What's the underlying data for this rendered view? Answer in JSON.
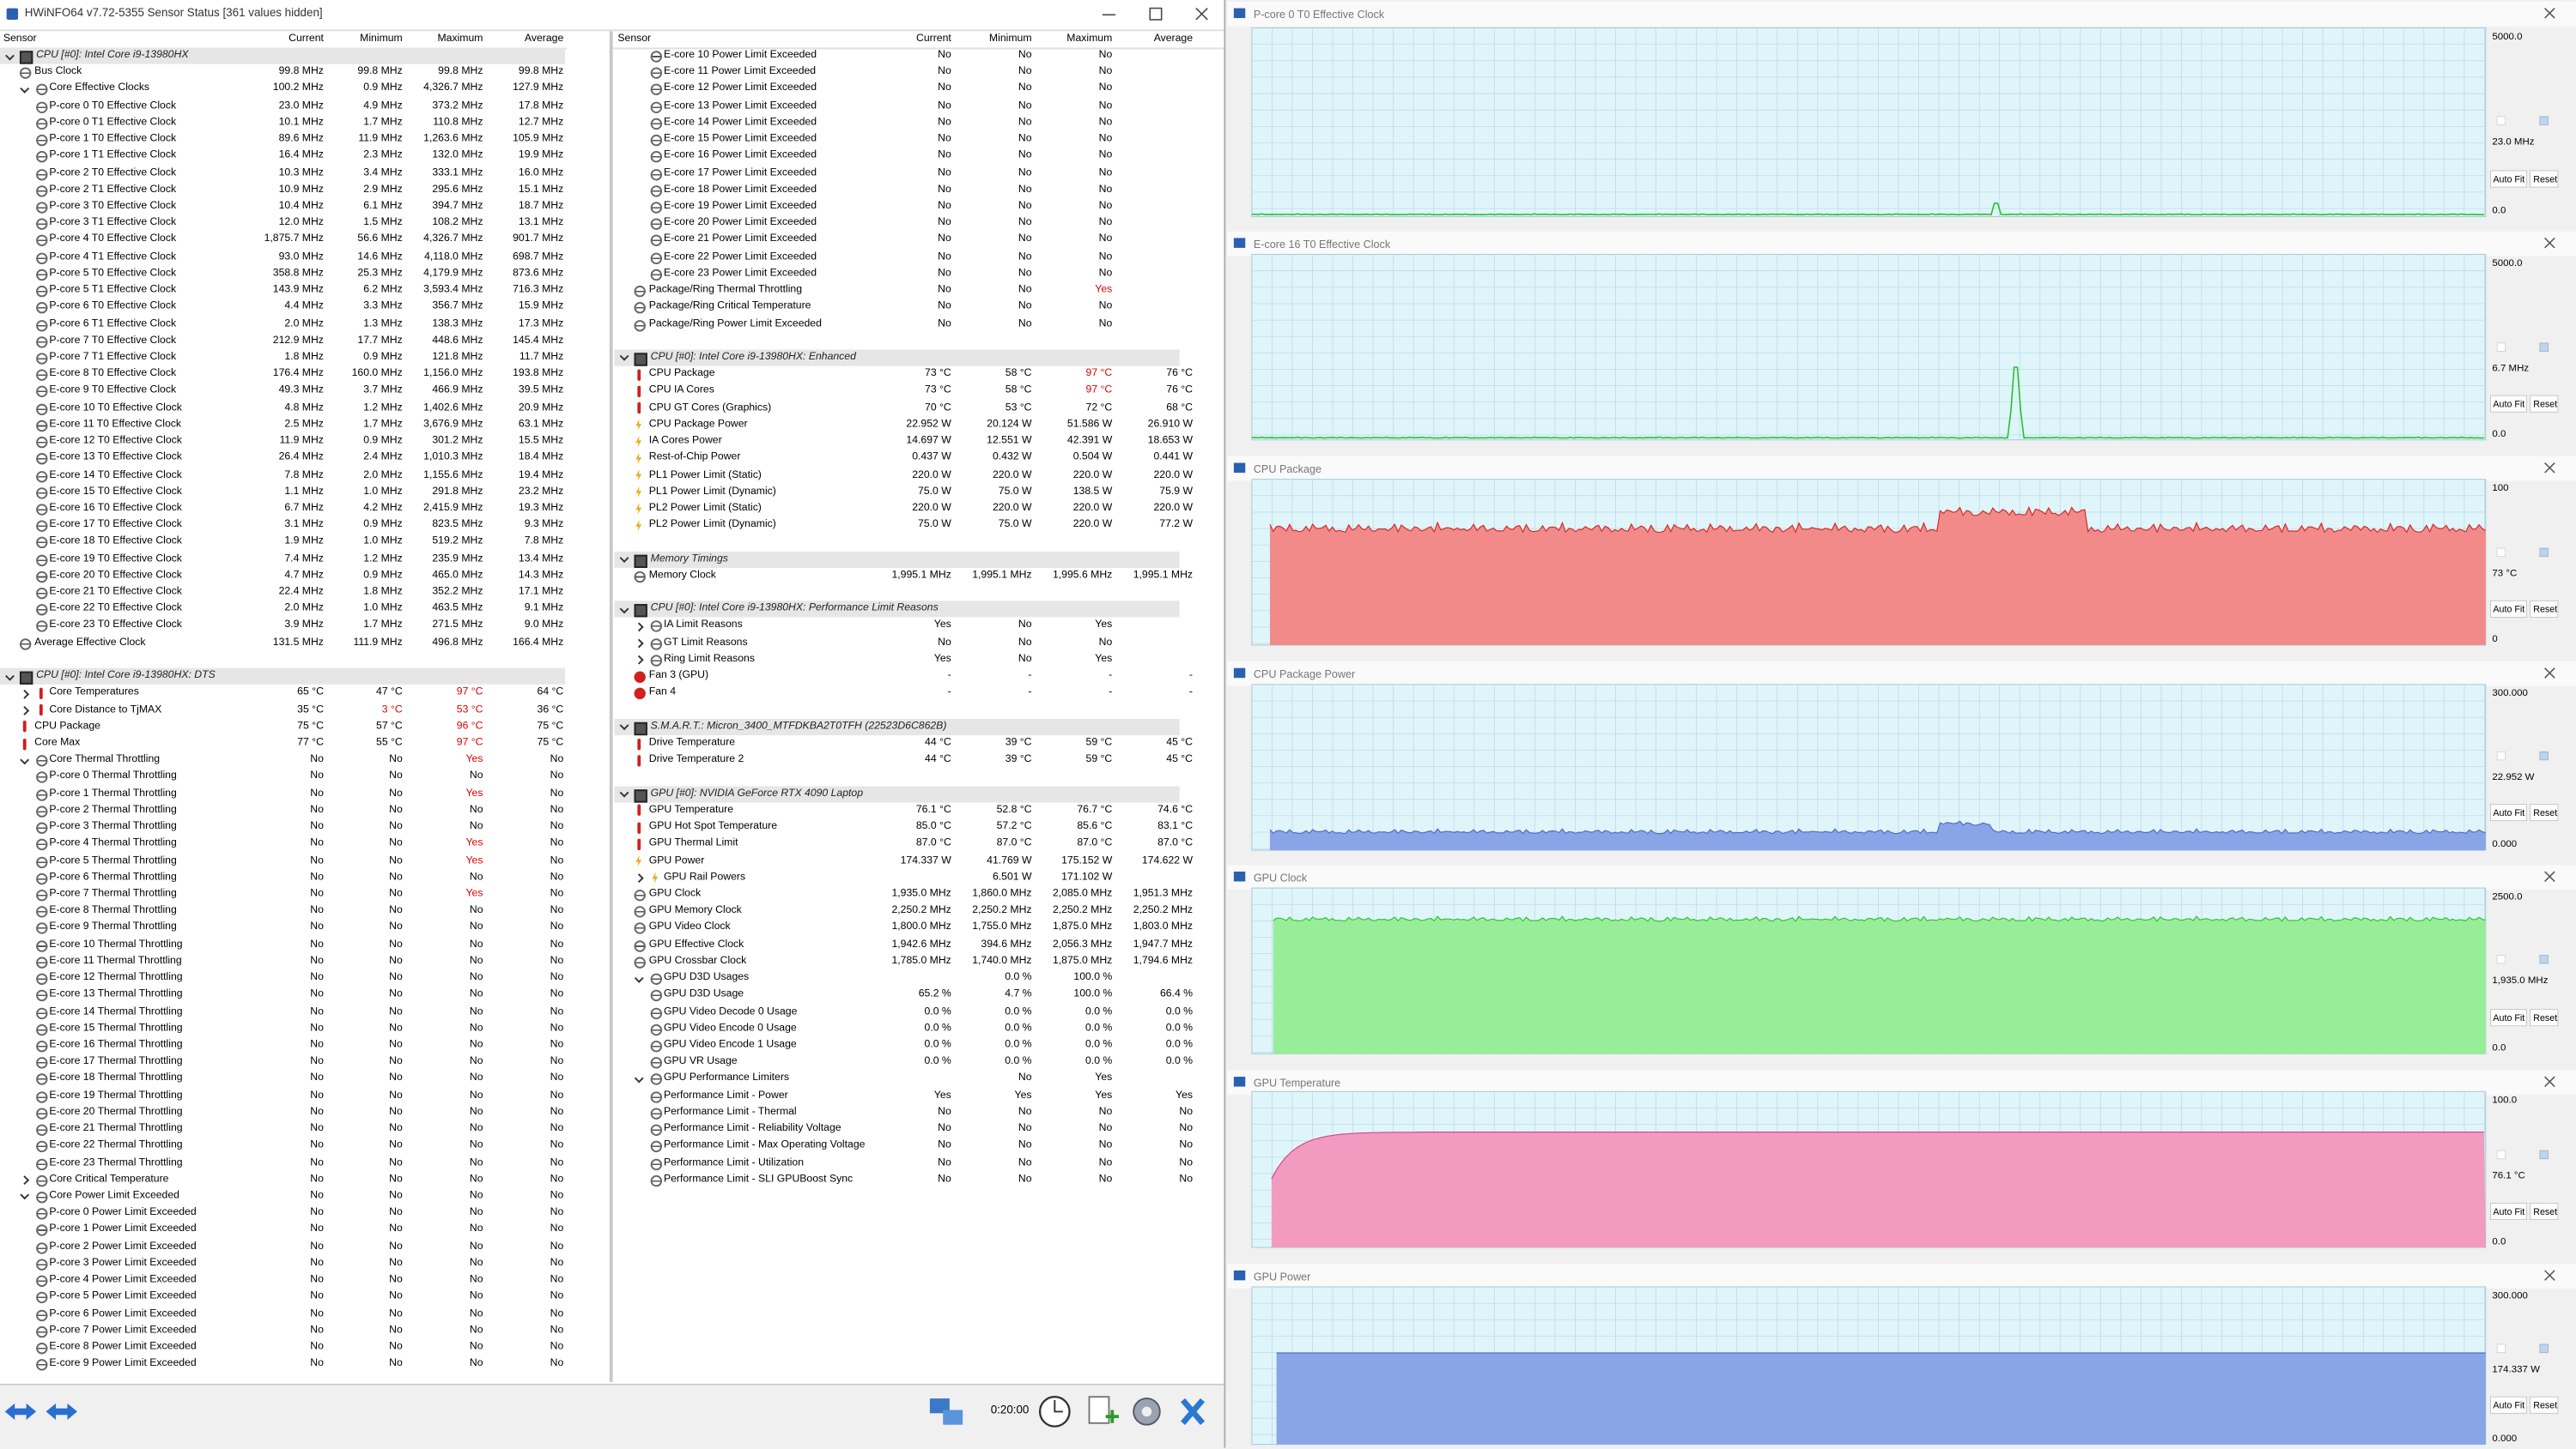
{
  "window_title": "HWiNFO64 v7.72-5355 Sensor Status [361 values hidden]",
  "left_pane": {
    "columns": [
      "Sensor",
      "Current",
      "Minimum",
      "Maximum",
      "Average"
    ],
    "rows": [
      [
        "CPU [#0]: Intel Core i9-13980HX"
      ],
      [
        "Bus Clock",
        "99.8 MHz",
        "99.8 MHz",
        "99.8 MHz",
        "99.8 MHz"
      ],
      [
        "Core Effective Clocks",
        "100.2 MHz",
        "0.9 MHz",
        "4,326.7 MHz",
        "127.9 MHz"
      ],
      [
        "P-core 0 T0 Effective Clock",
        "23.0 MHz",
        "4.9 MHz",
        "373.2 MHz",
        "17.8 MHz"
      ],
      [
        "P-core 0 T1 Effective Clock",
        "10.1 MHz",
        "1.7 MHz",
        "110.8 MHz",
        "12.7 MHz"
      ],
      [
        "P-core 1 T0 Effective Clock",
        "89.6 MHz",
        "11.9 MHz",
        "1,263.6 MHz",
        "105.9 MHz"
      ],
      [
        "P-core 1 T1 Effective Clock",
        "16.4 MHz",
        "2.3 MHz",
        "132.0 MHz",
        "19.9 MHz"
      ],
      [
        "P-core 2 T0 Effective Clock",
        "10.3 MHz",
        "3.4 MHz",
        "333.1 MHz",
        "16.0 MHz"
      ],
      [
        "P-core 2 T1 Effective Clock",
        "10.9 MHz",
        "2.9 MHz",
        "295.6 MHz",
        "15.1 MHz"
      ],
      [
        "P-core 3 T0 Effective Clock",
        "10.4 MHz",
        "6.1 MHz",
        "394.7 MHz",
        "18.7 MHz"
      ],
      [
        "P-core 3 T1 Effective Clock",
        "12.0 MHz",
        "1.5 MHz",
        "108.2 MHz",
        "13.1 MHz"
      ],
      [
        "P-core 4 T0 Effective Clock",
        "1,875.7 MHz",
        "56.6 MHz",
        "4,326.7 MHz",
        "901.7 MHz"
      ],
      [
        "P-core 4 T1 Effective Clock",
        "93.0 MHz",
        "14.6 MHz",
        "4,118.0 MHz",
        "698.7 MHz"
      ],
      [
        "P-core 5 T0 Effective Clock",
        "358.8 MHz",
        "25.3 MHz",
        "4,179.9 MHz",
        "873.6 MHz"
      ],
      [
        "P-core 5 T1 Effective Clock",
        "143.9 MHz",
        "6.2 MHz",
        "3,593.4 MHz",
        "716.3 MHz"
      ],
      [
        "P-core 6 T0 Effective Clock",
        "4.4 MHz",
        "3.3 MHz",
        "356.7 MHz",
        "15.9 MHz"
      ],
      [
        "P-core 6 T1 Effective Clock",
        "2.0 MHz",
        "1.3 MHz",
        "138.3 MHz",
        "17.3 MHz"
      ],
      [
        "P-core 7 T0 Effective Clock",
        "212.9 MHz",
        "17.7 MHz",
        "448.6 MHz",
        "145.4 MHz"
      ],
      [
        "P-core 7 T1 Effective Clock",
        "1.8 MHz",
        "0.9 MHz",
        "121.8 MHz",
        "11.7 MHz"
      ],
      [
        "E-core 8 T0 Effective Clock",
        "176.4 MHz",
        "160.0 MHz",
        "1,156.0 MHz",
        "193.8 MHz"
      ],
      [
        "E-core 9 T0 Effective Clock",
        "49.3 MHz",
        "3.7 MHz",
        "466.9 MHz",
        "39.5 MHz"
      ],
      [
        "E-core 10 T0 Effective Clock",
        "4.8 MHz",
        "1.2 MHz",
        "1,402.6 MHz",
        "20.9 MHz"
      ],
      [
        "E-core 11 T0 Effective Clock",
        "2.5 MHz",
        "1.7 MHz",
        "3,676.9 MHz",
        "63.1 MHz"
      ],
      [
        "E-core 12 T0 Effective Clock",
        "11.9 MHz",
        "0.9 MHz",
        "301.2 MHz",
        "15.5 MHz"
      ],
      [
        "E-core 13 T0 Effective Clock",
        "26.4 MHz",
        "2.4 MHz",
        "1,010.3 MHz",
        "18.4 MHz"
      ],
      [
        "E-core 14 T0 Effective Clock",
        "7.8 MHz",
        "2.0 MHz",
        "1,155.6 MHz",
        "19.4 MHz"
      ],
      [
        "E-core 15 T0 Effective Clock",
        "1.1 MHz",
        "1.0 MHz",
        "291.8 MHz",
        "23.2 MHz"
      ],
      [
        "E-core 16 T0 Effective Clock",
        "6.7 MHz",
        "4.2 MHz",
        "2,415.9 MHz",
        "19.3 MHz"
      ],
      [
        "E-core 17 T0 Effective Clock",
        "3.1 MHz",
        "0.9 MHz",
        "823.5 MHz",
        "9.3 MHz"
      ],
      [
        "E-core 18 T0 Effective Clock",
        "1.9 MHz",
        "1.0 MHz",
        "519.2 MHz",
        "7.8 MHz"
      ],
      [
        "E-core 19 T0 Effective Clock",
        "7.4 MHz",
        "1.2 MHz",
        "235.9 MHz",
        "13.4 MHz"
      ],
      [
        "E-core 20 T0 Effective Clock",
        "4.7 MHz",
        "0.9 MHz",
        "465.0 MHz",
        "14.3 MHz"
      ],
      [
        "E-core 21 T0 Effective Clock",
        "22.4 MHz",
        "1.8 MHz",
        "352.2 MHz",
        "17.1 MHz"
      ],
      [
        "E-core 22 T0 Effective Clock",
        "2.0 MHz",
        "1.0 MHz",
        "463.5 MHz",
        "9.1 MHz"
      ],
      [
        "E-core 23 T0 Effective Clock",
        "3.9 MHz",
        "1.7 MHz",
        "271.5 MHz",
        "9.0 MHz"
      ],
      [
        "Average Effective Clock",
        "131.5 MHz",
        "111.9 MHz",
        "496.8 MHz",
        "166.4 MHz"
      ],
      null,
      [
        "CPU [#0]: Intel Core i9-13980HX: DTS"
      ],
      [
        "Core Temperatures",
        "65 °C",
        "47 °C",
        {
          "text": "97 °C",
          "alert": true
        },
        "64 °C"
      ],
      [
        "Core Distance to TjMAX",
        "35 °C",
        {
          "text": "3 °C",
          "alert": true
        },
        {
          "text": "53 °C",
          "alert": true
        },
        "36 °C"
      ],
      [
        "CPU Package",
        "75 °C",
        "57 °C",
        {
          "text": "96 °C",
          "alert": true
        },
        "75 °C"
      ],
      [
        "Core Max",
        "77 °C",
        "55 °C",
        {
          "text": "97 °C",
          "alert": true
        },
        "75 °C"
      ],
      [
        "Core Thermal Throttling",
        "No",
        "No",
        {
          "text": "Yes",
          "alert": true
        },
        "No"
      ],
      [
        "P-core 0 Thermal Throttling",
        "No",
        "No",
        "No",
        "No"
      ],
      [
        "P-core 1 Thermal Throttling",
        "No",
        "No",
        {
          "text": "Yes",
          "alert": true
        },
        "No"
      ],
      [
        "P-core 2 Thermal Throttling",
        "No",
        "No",
        "No",
        "No"
      ],
      [
        "P-core 3 Thermal Throttling",
        "No",
        "No",
        "No",
        "No"
      ],
      [
        "P-core 4 Thermal Throttling",
        "No",
        "No",
        {
          "text": "Yes",
          "alert": true
        },
        "No"
      ],
      [
        "P-core 5 Thermal Throttling",
        "No",
        "No",
        {
          "text": "Yes",
          "alert": true
        },
        "No"
      ],
      [
        "P-core 6 Thermal Throttling",
        "No",
        "No",
        "No",
        "No"
      ],
      [
        "P-core 7 Thermal Throttling",
        "No",
        "No",
        {
          "text": "Yes",
          "alert": true
        },
        "No"
      ],
      [
        "E-core 8 Thermal Throttling",
        "No",
        "No",
        "No",
        "No"
      ],
      [
        "E-core 9 Thermal Throttling",
        "No",
        "No",
        "No",
        "No"
      ],
      [
        "E-core 10 Thermal Throttling",
        "No",
        "No",
        "No",
        "No"
      ],
      [
        "E-core 11 Thermal Throttling",
        "No",
        "No",
        "No",
        "No"
      ],
      [
        "E-core 12 Thermal Throttling",
        "No",
        "No",
        "No",
        "No"
      ],
      [
        "E-core 13 Thermal Throttling",
        "No",
        "No",
        "No",
        "No"
      ],
      [
        "E-core 14 Thermal Throttling",
        "No",
        "No",
        "No",
        "No"
      ],
      [
        "E-core 15 Thermal Throttling",
        "No",
        "No",
        "No",
        "No"
      ],
      [
        "E-core 16 Thermal Throttling",
        "No",
        "No",
        "No",
        "No"
      ],
      [
        "E-core 17 Thermal Throttling",
        "No",
        "No",
        "No",
        "No"
      ],
      [
        "E-core 18 Thermal Throttling",
        "No",
        "No",
        "No",
        "No"
      ],
      [
        "E-core 19 Thermal Throttling",
        "No",
        "No",
        "No",
        "No"
      ],
      [
        "E-core 20 Thermal Throttling",
        "No",
        "No",
        "No",
        "No"
      ],
      [
        "E-core 21 Thermal Throttling",
        "No",
        "No",
        "No",
        "No"
      ],
      [
        "E-core 22 Thermal Throttling",
        "No",
        "No",
        "No",
        "No"
      ],
      [
        "E-core 23 Thermal Throttling",
        "No",
        "No",
        "No",
        "No"
      ],
      [
        "Core Critical Temperature",
        "No",
        "No",
        "No",
        "No"
      ],
      [
        "Core Power Limit Exceeded",
        "No",
        "No",
        "No",
        "No"
      ],
      [
        "P-core 0 Power Limit Exceeded",
        "No",
        "No",
        "No",
        "No"
      ],
      [
        "P-core 1 Power Limit Exceeded",
        "No",
        "No",
        "No",
        "No"
      ],
      [
        "P-core 2 Power Limit Exceeded",
        "No",
        "No",
        "No",
        "No"
      ],
      [
        "P-core 3 Power Limit Exceeded",
        "No",
        "No",
        "No",
        "No"
      ],
      [
        "P-core 4 Power Limit Exceeded",
        "No",
        "No",
        "No",
        "No"
      ],
      [
        "P-core 5 Power Limit Exceeded",
        "No",
        "No",
        "No",
        "No"
      ],
      [
        "P-core 6 Power Limit Exceeded",
        "No",
        "No",
        "No",
        "No"
      ],
      [
        "P-core 7 Power Limit Exceeded",
        "No",
        "No",
        "No",
        "No"
      ],
      [
        "E-core 8 Power Limit Exceeded",
        "No",
        "No",
        "No",
        "No"
      ],
      [
        "E-core 9 Power Limit Exceeded",
        "No",
        "No",
        "No",
        "No"
      ]
    ]
  },
  "right_pane": {
    "columns": [
      "Sensor",
      "Current",
      "Minimum",
      "Maximum",
      "Average"
    ],
    "rows": [
      [
        "E-core 10 Power Limit Exceeded",
        "No",
        "No",
        "No",
        null
      ],
      [
        "E-core 11 Power Limit Exceeded",
        "No",
        "No",
        "No",
        null
      ],
      [
        "E-core 12 Power Limit Exceeded",
        "No",
        "No",
        "No",
        null
      ],
      [
        "E-core 13 Power Limit Exceeded",
        "No",
        "No",
        "No",
        null
      ],
      [
        "E-core 14 Power Limit Exceeded",
        "No",
        "No",
        "No",
        null
      ],
      [
        "E-core 15 Power Limit Exceeded",
        "No",
        "No",
        "No",
        null
      ],
      [
        "E-core 16 Power Limit Exceeded",
        "No",
        "No",
        "No",
        null
      ],
      [
        "E-core 17 Power Limit Exceeded",
        "No",
        "No",
        "No",
        null
      ],
      [
        "E-core 18 Power Limit Exceeded",
        "No",
        "No",
        "No",
        null
      ],
      [
        "E-core 19 Power Limit Exceeded",
        "No",
        "No",
        "No",
        null
      ],
      [
        "E-core 20 Power Limit Exceeded",
        "No",
        "No",
        "No",
        null
      ],
      [
        "E-core 21 Power Limit Exceeded",
        "No",
        "No",
        "No",
        null
      ],
      [
        "E-core 22 Power Limit Exceeded",
        "No",
        "No",
        "No",
        null
      ],
      [
        "E-core 23 Power Limit Exceeded",
        "No",
        "No",
        "No",
        null
      ],
      [
        "Package/Ring Thermal Throttling",
        "No",
        "No",
        {
          "text": "Yes",
          "alert": true
        },
        null
      ],
      [
        "Package/Ring Critical Temperature",
        "No",
        "No",
        "No",
        null
      ],
      [
        "Package/Ring Power Limit Exceeded",
        "No",
        "No",
        "No",
        null
      ],
      null,
      [
        "CPU [#0]: Intel Core i9-13980HX: Enhanced"
      ],
      [
        "CPU Package",
        "73 °C",
        "58 °C",
        {
          "text": "97 °C",
          "alert": true
        },
        "76 °C"
      ],
      [
        "CPU IA Cores",
        "73 °C",
        "58 °C",
        {
          "text": "97 °C",
          "alert": true
        },
        "76 °C"
      ],
      [
        "CPU GT Cores (Graphics)",
        "70 °C",
        "53 °C",
        "72 °C",
        "68 °C"
      ],
      [
        "CPU Package Power",
        "22.952 W",
        "20.124 W",
        "51.586 W",
        "26.910 W"
      ],
      [
        "IA Cores Power",
        "14.697 W",
        "12.551 W",
        "42.391 W",
        "18.653 W"
      ],
      [
        "Rest-of-Chip Power",
        "0.437 W",
        "0.432 W",
        "0.504 W",
        "0.441 W"
      ],
      [
        "PL1 Power Limit (Static)",
        "220.0 W",
        "220.0 W",
        "220.0 W",
        "220.0 W"
      ],
      [
        "PL1 Power Limit (Dynamic)",
        "75.0 W",
        "75.0 W",
        "138.5 W",
        "75.9 W"
      ],
      [
        "PL2 Power Limit (Static)",
        "220.0 W",
        "220.0 W",
        "220.0 W",
        "220.0 W"
      ],
      [
        "PL2 Power Limit (Dynamic)",
        "75.0 W",
        "75.0 W",
        "220.0 W",
        "77.2 W"
      ],
      null,
      [
        "Memory Timings"
      ],
      [
        "Memory Clock",
        "1,995.1 MHz",
        "1,995.1 MHz",
        "1,995.6 MHz",
        "1,995.1 MHz"
      ],
      null,
      [
        "CPU [#0]: Intel Core i9-13980HX: Performance Limit Reasons"
      ],
      [
        "IA Limit Reasons",
        "Yes",
        "No",
        "Yes",
        null
      ],
      [
        "GT Limit Reasons",
        "No",
        "No",
        "No",
        null
      ],
      [
        "Ring Limit Reasons",
        "Yes",
        "No",
        "Yes",
        null
      ],
      [
        "Fan 3 (GPU)",
        "-",
        "-",
        "-",
        "-"
      ],
      [
        "Fan 4",
        "-",
        "-",
        "-",
        "-"
      ],
      null,
      [
        "S.M.A.R.T.: Micron_3400_MTFDKBA2T0TFH (22523D6C862B)"
      ],
      [
        "Drive Temperature",
        "44 °C",
        "39 °C",
        "59 °C",
        "45 °C"
      ],
      [
        "Drive Temperature 2",
        "44 °C",
        "39 °C",
        "59 °C",
        "45 °C"
      ],
      null,
      [
        "GPU [#0]: NVIDIA GeForce RTX 4090 Laptop"
      ],
      [
        "GPU Temperature",
        "76.1 °C",
        "52.8 °C",
        "76.7 °C",
        "74.6 °C"
      ],
      [
        "GPU Hot Spot Temperature",
        "85.0 °C",
        "57.2 °C",
        "85.6 °C",
        "83.1 °C"
      ],
      [
        "GPU Thermal Limit",
        "87.0 °C",
        "87.0 °C",
        "87.0 °C",
        "87.0 °C"
      ],
      [
        "GPU Power",
        "174.337 W",
        "41.769 W",
        "175.152 W",
        "174.622 W"
      ],
      [
        "GPU Rail Powers",
        null,
        "6.501 W",
        "171.102 W",
        null
      ],
      [
        "GPU Clock",
        "1,935.0 MHz",
        "1,860.0 MHz",
        "2,085.0 MHz",
        "1,951.3 MHz"
      ],
      [
        "GPU Memory Clock",
        "2,250.2 MHz",
        "2,250.2 MHz",
        "2,250.2 MHz",
        "2,250.2 MHz"
      ],
      [
        "GPU Video Clock",
        "1,800.0 MHz",
        "1,755.0 MHz",
        "1,875.0 MHz",
        "1,803.0 MHz"
      ],
      [
        "GPU Effective Clock",
        "1,942.6 MHz",
        "394.6 MHz",
        "2,056.3 MHz",
        "1,947.7 MHz"
      ],
      [
        "GPU Crossbar Clock",
        "1,785.0 MHz",
        "1,740.0 MHz",
        "1,875.0 MHz",
        "1,794.6 MHz"
      ],
      [
        "GPU D3D Usages",
        null,
        "0.0 %",
        "100.0 %",
        null
      ],
      [
        "GPU D3D Usage",
        "65.2 %",
        "4.7 %",
        "100.0 %",
        "66.4 %"
      ],
      [
        "GPU Video Decode 0 Usage",
        "0.0 %",
        "0.0 %",
        "0.0 %",
        "0.0 %"
      ],
      [
        "GPU Video Encode 0 Usage",
        "0.0 %",
        "0.0 %",
        "0.0 %",
        "0.0 %"
      ],
      [
        "GPU Video Encode 1 Usage",
        "0.0 %",
        "0.0 %",
        "0.0 %",
        "0.0 %"
      ],
      [
        "GPU VR Usage",
        "0.0 %",
        "0.0 %",
        "0.0 %",
        "0.0 %"
      ],
      [
        "GPU Performance Limiters",
        null,
        "No",
        "Yes",
        null
      ],
      [
        "Performance Limit - Power",
        "Yes",
        "Yes",
        "Yes",
        "Yes"
      ],
      [
        "Performance Limit - Thermal",
        "No",
        "No",
        "No",
        "No"
      ],
      [
        "Performance Limit - Reliability Voltage",
        "No",
        "No",
        "No",
        "No"
      ],
      [
        "Performance Limit - Max Operating Voltage",
        "No",
        "No",
        "No",
        "No"
      ],
      [
        "Performance Limit - Utilization",
        "No",
        "No",
        "No",
        "No"
      ],
      [
        "Performance Limit - SLI GPUBoost Sync",
        "No",
        "No",
        "No",
        "No"
      ]
    ]
  },
  "toolbar": {
    "timer": "0:20:00"
  },
  "graph_buttons": {
    "auto_fit": "Auto Fit",
    "reset": "Reset"
  },
  "graphs": [
    {
      "title": "P-core 0 T0 Effective Clock",
      "max_label": "5000.0",
      "current": "23.0 MHz",
      "min_label": "0.0"
    },
    {
      "title": "E-core 16 T0 Effective Clock",
      "max_label": "5000.0",
      "current": "6.7 MHz",
      "min_label": "0.0"
    },
    {
      "title": "CPU Package",
      "max_label": "100",
      "current": "73 °C",
      "min_label": "0"
    },
    {
      "title": "CPU Package Power",
      "max_label": "300.000",
      "current": "22.952 W",
      "min_label": "0.000"
    },
    {
      "title": "GPU Clock",
      "max_label": "2500.0",
      "current": "1,935.0 MHz",
      "min_label": "0.0"
    },
    {
      "title": "GPU Temperature",
      "max_label": "100.0",
      "current": "76.1 °C",
      "min_label": "0.0"
    },
    {
      "title": "GPU Power",
      "max_label": "300.000",
      "current": "174.337 W",
      "min_label": "0.000"
    }
  ]
}
